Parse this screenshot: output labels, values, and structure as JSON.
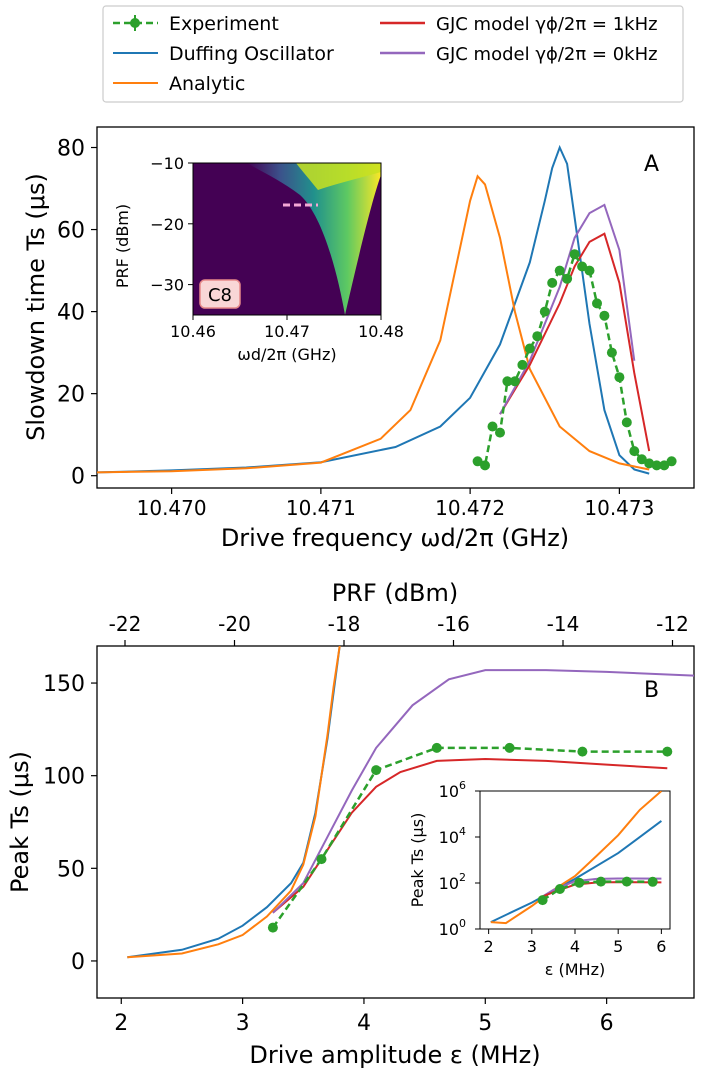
{
  "legend": {
    "entries": [
      {
        "label": "Experiment",
        "color": "#2ca02c",
        "style": "dashed-marker"
      },
      {
        "label": "Duffing Oscillator",
        "color": "#1f77b4",
        "style": "line"
      },
      {
        "label": "Analytic",
        "color": "#ff7f0e",
        "style": "line"
      },
      {
        "label": "GJC model γϕ/2π = 1kHz",
        "color": "#d62728",
        "style": "line"
      },
      {
        "label": "GJC model γϕ/2π = 0kHz",
        "color": "#9467bd",
        "style": "line"
      }
    ]
  },
  "colors": {
    "experiment": "#2ca02c",
    "duffing": "#1f77b4",
    "analytic": "#ff7f0e",
    "gjc1": "#d62728",
    "gjc0": "#9467bd"
  },
  "chart_data": [
    {
      "panel": "A",
      "type": "line",
      "xlabel": "Drive frequency ωd/2π (GHz)",
      "ylabel": "Slowdown time Ts (μs)",
      "xlim": [
        10.4695,
        10.4735
      ],
      "ylim": [
        -3,
        85
      ],
      "xticks": [
        "10.470",
        "10.471",
        "10.472",
        "10.473"
      ],
      "yticks": [
        "0",
        "20",
        "40",
        "60",
        "80"
      ],
      "panel_label": "A",
      "series": [
        {
          "name": "Duffing Oscillator",
          "key": "duffing",
          "x": [
            10.4695,
            10.47,
            10.4705,
            10.471,
            10.4715,
            10.4718,
            10.472,
            10.4722,
            10.4724,
            10.4725,
            10.47255,
            10.4726,
            10.47265,
            10.4727,
            10.4728,
            10.4729,
            10.473,
            10.4731,
            10.4732
          ],
          "y": [
            0.8,
            1.3,
            2.0,
            3.3,
            7,
            12,
            19,
            32,
            52,
            67,
            75,
            80,
            76,
            63,
            37,
            16,
            5,
            1.5,
            0.5
          ]
        },
        {
          "name": "Analytic",
          "key": "analytic",
          "x": [
            10.4695,
            10.47,
            10.4705,
            10.471,
            10.4714,
            10.4716,
            10.4718,
            10.4719,
            10.472,
            10.47205,
            10.4721,
            10.4722,
            10.4723,
            10.4724,
            10.4726,
            10.4728,
            10.473,
            10.4732
          ],
          "y": [
            0.8,
            1.1,
            1.8,
            3.2,
            9,
            16,
            33,
            50,
            67,
            73,
            71,
            58,
            40,
            26,
            12,
            6,
            3,
            1.5
          ]
        },
        {
          "name": "GJC model γϕ/2π = 1kHz",
          "key": "gjc1",
          "x": [
            10.4722,
            10.4724,
            10.4726,
            10.4727,
            10.4728,
            10.4729,
            10.473,
            10.4731,
            10.4732
          ],
          "y": [
            15,
            27,
            42,
            51,
            57,
            59,
            47,
            25,
            6
          ]
        },
        {
          "name": "GJC model γϕ/2π = 0kHz",
          "key": "gjc0",
          "x": [
            10.4722,
            10.4724,
            10.4726,
            10.4727,
            10.4728,
            10.4729,
            10.473,
            10.4731
          ],
          "y": [
            15,
            28,
            46,
            58,
            64,
            66,
            55,
            28
          ]
        },
        {
          "name": "Experiment",
          "key": "experiment",
          "x": [
            10.47205,
            10.4721,
            10.47215,
            10.4722,
            10.47225,
            10.4723,
            10.47235,
            10.4724,
            10.47245,
            10.4725,
            10.47255,
            10.4726,
            10.47265,
            10.4727,
            10.47275,
            10.4728,
            10.47285,
            10.4729,
            10.47295,
            10.473,
            10.47305,
            10.4731,
            10.47315,
            10.4732,
            10.47325,
            10.4733,
            10.47335
          ],
          "y": [
            3.5,
            2.5,
            12,
            10.5,
            23,
            23,
            27,
            31,
            34,
            40,
            47,
            50,
            48,
            54,
            51,
            50,
            42,
            39,
            30,
            24,
            13,
            6,
            4,
            3,
            2.5,
            2.5,
            3.5
          ]
        }
      ],
      "inset": {
        "label": "C8",
        "xlabel": "ωd/2π (GHz)",
        "ylabel": "PRF (dBm)",
        "xlim": [
          10.46,
          10.48
        ],
        "ylim": [
          -35,
          -10
        ],
        "xticks": [
          "10.46",
          "10.47",
          "10.48"
        ],
        "yticks": [
          "−10",
          "−20",
          "−30"
        ],
        "type": "heatmap"
      }
    },
    {
      "panel": "B",
      "type": "line",
      "xlabel": "Drive amplitude ε (MHz)",
      "ylabel": "Peak Ts (μs)",
      "top_xlabel": "PRF (dBm)",
      "xlim": [
        1.8,
        6.72
      ],
      "ylim": [
        -20,
        170
      ],
      "xticks": [
        "2",
        "3",
        "4",
        "5",
        "6"
      ],
      "yticks": [
        "0",
        "50",
        "100",
        "150"
      ],
      "top_ticks": [
        "-22",
        "-20",
        "-18",
        "-16",
        "-14",
        "-12"
      ],
      "panel_label": "B",
      "series": [
        {
          "name": "Duffing Oscillator",
          "key": "duffing",
          "x": [
            2.05,
            2.5,
            2.8,
            3.0,
            3.2,
            3.4,
            3.5,
            3.6,
            3.7,
            3.75,
            3.8
          ],
          "y": [
            2,
            6,
            12,
            19,
            29,
            42,
            53,
            80,
            120,
            145,
            170
          ]
        },
        {
          "name": "Analytic",
          "key": "analytic",
          "x": [
            2.05,
            2.5,
            2.8,
            3.0,
            3.2,
            3.4,
            3.5,
            3.6,
            3.7,
            3.75,
            3.8
          ],
          "y": [
            2,
            4,
            9,
            14,
            24,
            38,
            52,
            78,
            122,
            148,
            170
          ]
        },
        {
          "name": "GJC model γϕ/2π = 1kHz",
          "key": "gjc1",
          "x": [
            3.25,
            3.5,
            3.7,
            3.9,
            4.1,
            4.3,
            4.6,
            5.0,
            5.5,
            6.0,
            6.5
          ],
          "y": [
            26,
            40,
            60,
            80,
            94,
            102,
            108,
            109,
            108,
            106,
            104
          ]
        },
        {
          "name": "GJC model γϕ/2π = 0kHz",
          "key": "gjc0",
          "x": [
            3.25,
            3.5,
            3.7,
            3.9,
            4.1,
            4.4,
            4.7,
            5.0,
            5.5,
            6.0,
            6.72
          ],
          "y": [
            26,
            42,
            67,
            92,
            115,
            138,
            152,
            157,
            157,
            156,
            154
          ]
        },
        {
          "name": "Experiment",
          "key": "experiment",
          "x": [
            3.25,
            3.65,
            4.1,
            4.6,
            5.2,
            5.8,
            6.5
          ],
          "y": [
            18,
            55,
            103,
            115,
            115,
            113,
            113
          ]
        }
      ],
      "inset": {
        "xlabel": "ε (MHz)",
        "ylabel": "Peak Ts (μs)",
        "yscale": "log",
        "xlim": [
          1.8,
          6.2
        ],
        "ylim": [
          1,
          1000000
        ],
        "xticks": [
          "2",
          "3",
          "4",
          "5",
          "6"
        ],
        "ytick_exponents": [
          "0",
          "2",
          "4",
          "6"
        ],
        "series": [
          {
            "key": "duffing",
            "x": [
              2.05,
              3.0,
              4.0,
              5.0,
              6.0
            ],
            "y": [
              2,
              14,
              150,
              2000,
              50000
            ]
          },
          {
            "key": "analytic",
            "x": [
              2.05,
              2.4,
              3.0,
              3.5,
              4.0,
              4.5,
              5.0,
              5.5,
              6.0
            ],
            "y": [
              2,
              1.8,
              10,
              50,
              200,
              1500,
              12000,
              150000,
              1000000
            ]
          },
          {
            "key": "gjc0",
            "x": [
              3.25,
              3.5,
              4.0,
              4.5,
              5.0,
              6.0
            ],
            "y": [
              26,
              50,
              120,
              150,
              157,
              156
            ]
          },
          {
            "key": "gjc1",
            "x": [
              3.25,
              3.5,
              4.0,
              4.5,
              5.0,
              6.0
            ],
            "y": [
              26,
              40,
              85,
              105,
              109,
              106
            ]
          },
          {
            "key": "experiment",
            "x": [
              3.25,
              3.65,
              4.1,
              4.6,
              5.2,
              5.8
            ],
            "y": [
              18,
              55,
              103,
              115,
              115,
              113
            ]
          }
        ]
      }
    }
  ]
}
